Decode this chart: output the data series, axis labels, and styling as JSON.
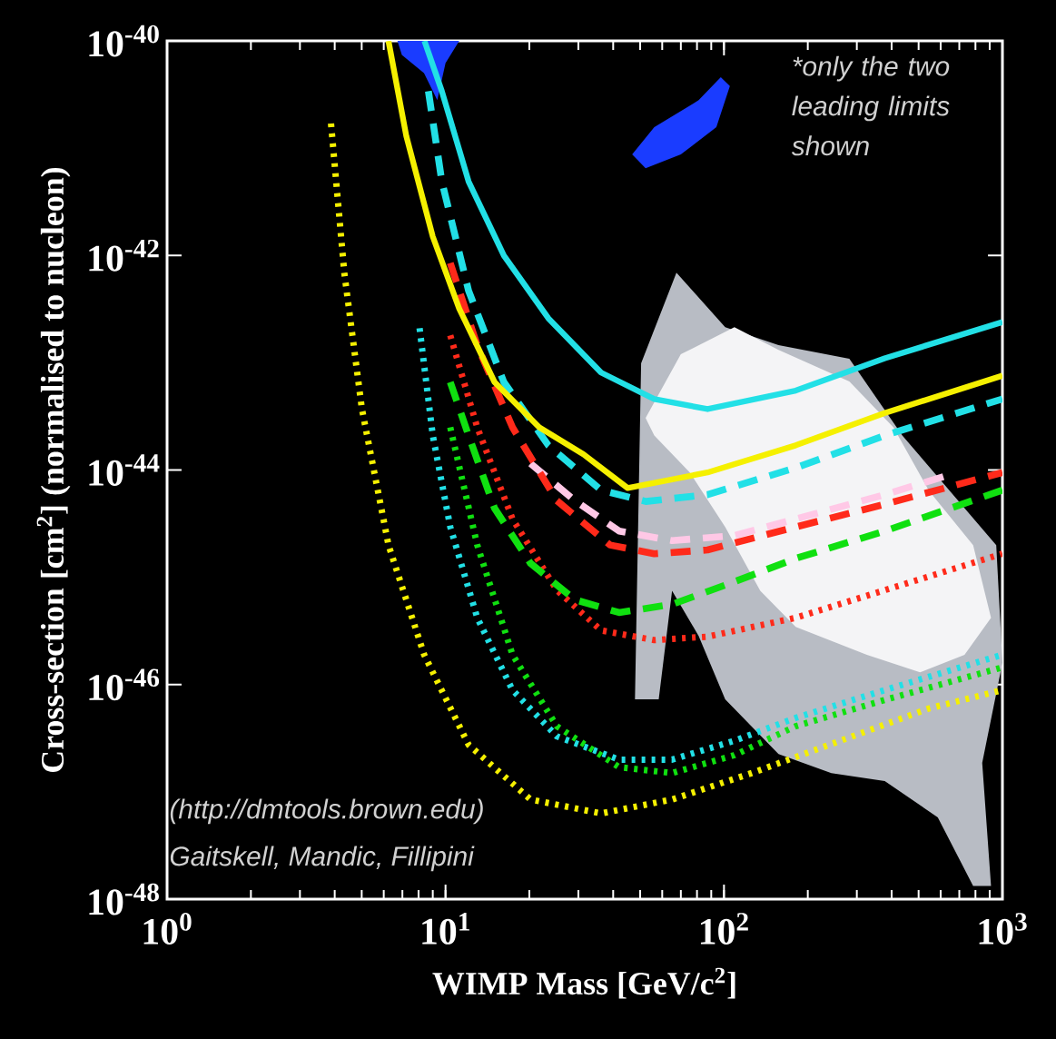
{
  "chart_data": {
    "type": "line",
    "xlabel": "WIMP Mass [GeV/c$^{2}$]",
    "ylabel": "Cross-section [cm$^{2}$] (normalised to nucleon)",
    "log": "xy",
    "grid": false,
    "marker": "none",
    "xlim": [
      1,
      1000
    ],
    "ylim": [
      1e-48,
      1e-40
    ],
    "xticks": [
      {
        "value": 1,
        "label": "10$^{0}$"
      },
      {
        "value": 10,
        "label": "10$^{1}$"
      },
      {
        "value": 100,
        "label": "10$^{2}$"
      },
      {
        "value": 1000,
        "label": "10$^{3}$"
      }
    ],
    "yticks": [
      {
        "value": 1e-48,
        "label": "10$^{-48}$"
      },
      {
        "value": 1e-46,
        "label": "10$^{-46}$"
      },
      {
        "value": 1e-44,
        "label": "10$^{-44}$"
      },
      {
        "value": 1e-42,
        "label": "10$^{-42}$"
      },
      {
        "value": 1e-40,
        "label": "10$^{-40}$"
      }
    ],
    "annotations": [
      "*only the two leading limits shown",
      "(http://dmtools.brown.edu)",
      "Gaitskell, Mandic, Fillipini"
    ],
    "series": [
      {
        "type": "area",
        "color": "#b8bcc4",
        "x": [
          50.4,
          67.5,
          101,
          157,
          282,
          437,
          950,
          1000,
          846,
          910,
          785,
          586,
          378,
          243,
          157,
          101,
          81.1,
          65.1,
          58.3,
          47.9
        ],
        "values": [
          9.9e-44,
          6.9e-43,
          2.15e-43,
          1.46e-43,
          1.09e-43,
          2.1e-44,
          2e-45,
          1.6e-46,
          1.86e-47,
          1.33e-48,
          1.33e-48,
          5.8e-48,
          1.26e-47,
          1.5e-47,
          2.25e-47,
          7.3e-47,
          2.84e-46,
          7.5e-46,
          7.3e-47,
          7.3e-47
        ]
      },
      {
        "type": "area",
        "color": "#f4f4f6",
        "x": [
          52.3,
          70.0,
          109,
          157,
          282,
          406,
          545,
          785,
          910,
          731,
          506,
          326,
          181,
          135,
          101,
          75.4,
          56.2
        ],
        "values": [
          3.06e-44,
          1.2e-43,
          2.15e-43,
          1.32e-43,
          6.7e-44,
          2.5e-44,
          6.4e-45,
          2e-45,
          4.2e-46,
          1.9e-46,
          1.3e-46,
          1.9e-46,
          3.45e-46,
          7.5e-46,
          2.95e-45,
          9.5e-45,
          2.1e-44
        ]
      },
      {
        "type": "area",
        "color": "#1a3cff",
        "x": [
          6.72,
          11.2,
          10.0,
          9.34,
          8.37,
          6.97
        ],
        "values": [
          1e-40,
          1e-40,
          6.2e-41,
          2.8e-41,
          5e-41,
          7.4e-41
        ]
      },
      {
        "type": "area",
        "color": "#1a3cff",
        "x": [
          46.8,
          56.2,
          81.1,
          97.4,
          105,
          93.9,
          70.0,
          52.3
        ],
        "values": [
          8.75e-42,
          1.57e-41,
          2.8e-41,
          4.6e-41,
          3.8e-41,
          1.57e-41,
          8.75e-42,
          6.5e-42
        ]
      },
      {
        "color": "#f5f000",
        "line_style": "dotted",
        "x": [
          3.88,
          4.33,
          5.01,
          6.24,
          8.38,
          12.1,
          20.2,
          36.2,
          65.1,
          126,
          262,
          545,
          1000
        ],
        "values": [
          1.7e-41,
          6.9e-43,
          3.7e-44,
          2e-45,
          1.9e-46,
          2.75e-47,
          8.5e-48,
          6.3e-48,
          8.5e-48,
          1.5e-47,
          3e-47,
          6e-47,
          8.9e-47
        ]
      },
      {
        "color": "#22e0e6",
        "line_style": "dotted",
        "x": [
          8.07,
          9.0,
          10.4,
          13.0,
          17.4,
          25.1,
          42.0,
          65.1,
          109,
          181,
          378,
          1000
        ],
        "values": [
          2.1e-43,
          2.1e-44,
          2.95e-45,
          4.2e-46,
          8.9e-47,
          3.3e-47,
          2e-47,
          2e-47,
          3e-47,
          4.9e-47,
          8.9e-47,
          1.9e-46
        ]
      },
      {
        "color": "#10e010",
        "line_style": "dotted",
        "x": [
          10.4,
          13.0,
          17.4,
          25.1,
          42.0,
          65.1,
          109,
          181,
          378,
          1000
        ],
        "values": [
          2.5e-44,
          2e-45,
          1.9e-46,
          4.1e-47,
          1.7e-47,
          1.5e-47,
          2.2e-47,
          4.1e-47,
          7.2e-47,
          1.45e-46
        ]
      },
      {
        "color": "#ff2a1a",
        "line_style": "dotted",
        "x": [
          10.4,
          13.0,
          17.4,
          25.1,
          36.2,
          56.2,
          87.3,
          181,
          378,
          1000
        ],
        "values": [
          1.8e-43,
          2.5e-44,
          3.5e-45,
          7.6e-46,
          3.2e-46,
          2.6e-46,
          2.8e-46,
          4.2e-46,
          7.6e-46,
          1.66e-45
        ]
      },
      {
        "color": "#10e010",
        "line_style": "dashed",
        "x": [
          10.4,
          12.1,
          15.0,
          20.2,
          29.1,
          42.0,
          65.1,
          109,
          181,
          378,
          1000
        ],
        "values": [
          6.6e-44,
          2.1e-44,
          4.4e-45,
          1.35e-45,
          6.2e-46,
          4.7e-46,
          5.6e-46,
          9.1e-46,
          1.5e-45,
          2.7e-45,
          6.5e-45
        ]
      },
      {
        "color": "#ffc8e6",
        "line_style": "dashed",
        "x": [
          20.2,
          29.1,
          42.0,
          65.1,
          109,
          181,
          378,
          654
        ],
        "values": [
          1.15e-44,
          5.2e-45,
          2.7e-45,
          2.2e-45,
          2.45e-45,
          3.5e-45,
          5.9e-45,
          9.1e-45
        ]
      },
      {
        "color": "#ff2a1a",
        "line_style": "dashed",
        "x": [
          10.4,
          13.0,
          17.4,
          25.1,
          39.0,
          56.2,
          87.3,
          181,
          378,
          1000
        ],
        "values": [
          8.5e-43,
          1.45e-43,
          2.5e-44,
          5.2e-45,
          2e-45,
          1.66e-45,
          1.8e-45,
          2.95e-45,
          4.8e-45,
          9.5e-45
        ]
      },
      {
        "color": "#22e0e6",
        "line_style": "dashed",
        "x": [
          8.68,
          9.7,
          12.1,
          16.2,
          23.4,
          36.2,
          52.4,
          87.3,
          181,
          378,
          1000
        ],
        "values": [
          3.4e-41,
          4.9e-42,
          4.7e-43,
          6.6e-44,
          1.7e-44,
          6.5e-45,
          5.1e-45,
          5.9e-45,
          1.05e-44,
          2.1e-44,
          4.6e-44
        ]
      },
      {
        "color": "#f5f000",
        "line_style": "solid",
        "x": [
          6.24,
          7.23,
          9.0,
          11.2,
          15.0,
          21.7,
          31.3,
          45.1,
          87.3,
          181,
          378,
          1000
        ],
        "values": [
          1e-40,
          1.3e-41,
          1.5e-42,
          3.2e-43,
          6.6e-44,
          2.5e-44,
          1.4e-44,
          6.8e-45,
          9.5e-45,
          1.7e-44,
          3.4e-44,
          7.6e-44
        ]
      },
      {
        "color": "#22e0e6",
        "line_style": "solid",
        "x": [
          8.4,
          9.7,
          12.1,
          16.2,
          23.4,
          36.2,
          56.2,
          87.3,
          181,
          378,
          1000
        ],
        "values": [
          1e-40,
          3.4e-41,
          4.9e-42,
          1e-42,
          2.6e-43,
          8.1e-44,
          4.6e-44,
          3.7e-44,
          5.5e-44,
          1.1e-43,
          2.4e-43
        ]
      }
    ]
  }
}
